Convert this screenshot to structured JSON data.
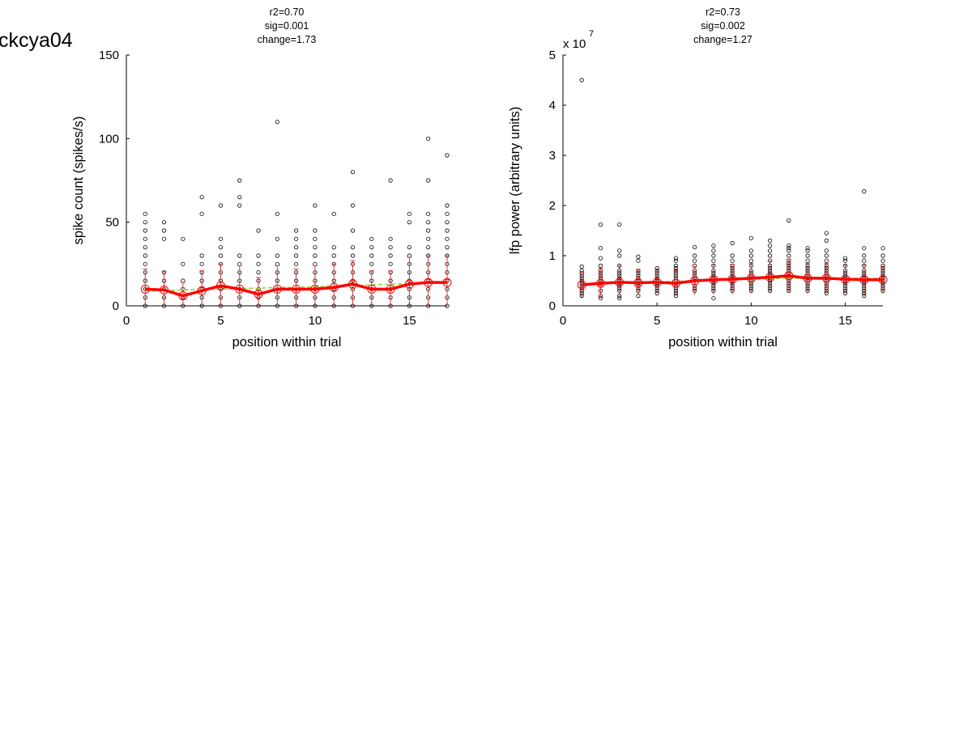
{
  "figure_label": "ckcya04",
  "colors": {
    "scatter": "#000000",
    "mean": "#ff0000",
    "errorbar": "#d04040",
    "fit": "#9acd32"
  },
  "chart_data": [
    {
      "type": "scatter",
      "stats": [
        "r2=0.70",
        "sig=0.001",
        "change=1.73"
      ],
      "xlabel": "position within trial",
      "ylabel": "spike count (spikes/s)",
      "exponent_label": "",
      "xlim": [
        0,
        17
      ],
      "ylim": [
        0,
        150
      ],
      "xticks": [
        0,
        5,
        10,
        15
      ],
      "yticks": [
        0,
        50,
        100,
        150
      ],
      "ytick_labels": [
        "0",
        "50",
        "100",
        "150"
      ],
      "points": [
        [
          1,
          [
            0,
            5,
            10,
            15,
            20,
            25,
            30,
            35,
            40,
            45,
            50,
            55
          ]
        ],
        [
          2,
          [
            0,
            5,
            10,
            15,
            20,
            40,
            45,
            50
          ]
        ],
        [
          3,
          [
            0,
            5,
            10,
            15,
            25,
            40
          ]
        ],
        [
          4,
          [
            0,
            5,
            10,
            15,
            20,
            25,
            30,
            55,
            65
          ]
        ],
        [
          5,
          [
            0,
            5,
            10,
            15,
            20,
            25,
            30,
            35,
            40,
            60
          ]
        ],
        [
          6,
          [
            0,
            5,
            10,
            15,
            20,
            25,
            30,
            60,
            65,
            75
          ]
        ],
        [
          7,
          [
            0,
            5,
            10,
            15,
            20,
            25,
            30,
            45
          ]
        ],
        [
          8,
          [
            0,
            5,
            10,
            15,
            20,
            25,
            30,
            40,
            55,
            110
          ]
        ],
        [
          9,
          [
            0,
            5,
            10,
            15,
            20,
            25,
            30,
            35,
            40,
            45
          ]
        ],
        [
          10,
          [
            0,
            5,
            10,
            15,
            20,
            25,
            30,
            35,
            40,
            45,
            60
          ]
        ],
        [
          11,
          [
            0,
            5,
            10,
            15,
            20,
            25,
            30,
            35,
            55
          ]
        ],
        [
          12,
          [
            0,
            5,
            10,
            15,
            20,
            25,
            30,
            35,
            45,
            60,
            80
          ]
        ],
        [
          13,
          [
            0,
            5,
            10,
            15,
            20,
            25,
            30,
            35,
            40
          ]
        ],
        [
          14,
          [
            0,
            5,
            10,
            15,
            20,
            25,
            30,
            35,
            40,
            75
          ]
        ],
        [
          15,
          [
            0,
            5,
            10,
            15,
            20,
            25,
            30,
            35,
            50,
            55
          ]
        ],
        [
          16,
          [
            0,
            5,
            10,
            15,
            20,
            25,
            30,
            35,
            40,
            45,
            50,
            55,
            75,
            100
          ]
        ],
        [
          17,
          [
            0,
            5,
            10,
            15,
            20,
            25,
            30,
            35,
            40,
            45,
            50,
            55,
            60,
            90
          ]
        ]
      ],
      "mean": [
        10,
        9.5,
        6,
        9,
        12,
        10,
        7,
        10,
        10,
        10,
        11,
        13,
        10,
        10,
        13,
        14,
        14
      ],
      "err": [
        12,
        11,
        8,
        12,
        13,
        14,
        10,
        14,
        12,
        14,
        14,
        14,
        11,
        11,
        16,
        16,
        16
      ],
      "fit": [
        9,
        9,
        9.5,
        10,
        10,
        10.5,
        10.5,
        11,
        11,
        11.5,
        12,
        12,
        12.5,
        13,
        13,
        13.5,
        14
      ]
    },
    {
      "type": "scatter",
      "stats": [
        "r2=0.73",
        "sig=0.002",
        "change=1.27"
      ],
      "xlabel": "position within trial",
      "ylabel": "lfp power (arbitrary units)",
      "exponent_label": "x 10",
      "exponent_sup": "7",
      "xlim": [
        0,
        17
      ],
      "ylim": [
        0,
        5
      ],
      "xticks": [
        0,
        5,
        10,
        15
      ],
      "yticks": [
        0,
        1,
        2,
        3,
        4,
        5
      ],
      "ytick_labels": [
        "0",
        "1",
        "2",
        "3",
        "4",
        "5"
      ],
      "points": [
        [
          1,
          [
            0.2,
            0.25,
            0.3,
            0.35,
            0.4,
            0.45,
            0.5,
            0.55,
            0.6,
            0.65,
            0.7,
            0.78,
            4.5
          ]
        ],
        [
          2,
          [
            0.15,
            0.2,
            0.3,
            0.4,
            0.45,
            0.5,
            0.55,
            0.6,
            0.65,
            0.7,
            0.8,
            0.95,
            1.15,
            1.62
          ]
        ],
        [
          3,
          [
            0.15,
            0.2,
            0.3,
            0.35,
            0.4,
            0.45,
            0.5,
            0.55,
            0.6,
            0.65,
            0.7,
            0.8,
            1.0,
            1.1,
            1.62
          ]
        ],
        [
          4,
          [
            0.2,
            0.3,
            0.35,
            0.4,
            0.45,
            0.5,
            0.55,
            0.6,
            0.65,
            0.7,
            0.9,
            0.98
          ]
        ],
        [
          5,
          [
            0.25,
            0.3,
            0.35,
            0.4,
            0.45,
            0.5,
            0.55,
            0.6,
            0.65,
            0.7,
            0.75
          ]
        ],
        [
          6,
          [
            0.2,
            0.25,
            0.3,
            0.35,
            0.4,
            0.45,
            0.5,
            0.55,
            0.6,
            0.65,
            0.7,
            0.75,
            0.8,
            0.9,
            0.95
          ]
        ],
        [
          7,
          [
            0.3,
            0.35,
            0.4,
            0.5,
            0.55,
            0.6,
            0.65,
            0.7,
            0.8,
            0.9,
            1.0,
            1.17
          ]
        ],
        [
          8,
          [
            0.15,
            0.3,
            0.35,
            0.4,
            0.45,
            0.5,
            0.55,
            0.6,
            0.65,
            0.7,
            0.8,
            0.9,
            1.0,
            1.1,
            1.2
          ]
        ],
        [
          9,
          [
            0.3,
            0.35,
            0.4,
            0.45,
            0.5,
            0.55,
            0.6,
            0.65,
            0.7,
            0.75,
            0.8,
            0.9,
            1.0,
            1.25
          ]
        ],
        [
          10,
          [
            0.3,
            0.35,
            0.4,
            0.45,
            0.5,
            0.55,
            0.6,
            0.65,
            0.7,
            0.8,
            0.9,
            1.0,
            1.1,
            1.35
          ]
        ],
        [
          11,
          [
            0.3,
            0.35,
            0.4,
            0.45,
            0.5,
            0.55,
            0.6,
            0.65,
            0.7,
            0.75,
            0.8,
            0.9,
            1.0,
            1.1,
            1.2,
            1.3
          ]
        ],
        [
          12,
          [
            0.3,
            0.35,
            0.4,
            0.45,
            0.5,
            0.55,
            0.6,
            0.65,
            0.7,
            0.75,
            0.8,
            0.85,
            0.9,
            1.0,
            1.1,
            1.15,
            1.2,
            1.7
          ]
        ],
        [
          13,
          [
            0.3,
            0.35,
            0.4,
            0.45,
            0.5,
            0.55,
            0.6,
            0.65,
            0.7,
            0.75,
            0.8,
            0.9,
            1.0,
            1.1,
            1.15
          ]
        ],
        [
          14,
          [
            0.25,
            0.3,
            0.35,
            0.4,
            0.45,
            0.5,
            0.55,
            0.6,
            0.65,
            0.7,
            0.75,
            0.8,
            0.9,
            1.0,
            1.1,
            1.3,
            1.45
          ]
        ],
        [
          15,
          [
            0.25,
            0.3,
            0.35,
            0.4,
            0.45,
            0.5,
            0.55,
            0.6,
            0.65,
            0.7,
            0.8,
            0.9,
            0.95
          ]
        ],
        [
          16,
          [
            0.2,
            0.25,
            0.3,
            0.35,
            0.4,
            0.45,
            0.5,
            0.55,
            0.6,
            0.65,
            0.7,
            0.8,
            0.9,
            1.0,
            1.15,
            2.28
          ]
        ],
        [
          17,
          [
            0.3,
            0.35,
            0.4,
            0.45,
            0.5,
            0.55,
            0.6,
            0.65,
            0.7,
            0.75,
            0.8,
            0.9,
            1.0,
            1.15
          ]
        ]
      ],
      "mean": [
        0.42,
        0.45,
        0.47,
        0.46,
        0.47,
        0.45,
        0.5,
        0.52,
        0.53,
        0.55,
        0.57,
        0.6,
        0.55,
        0.55,
        0.53,
        0.52,
        0.52
      ],
      "err": [
        0.25,
        0.3,
        0.33,
        0.25,
        0.22,
        0.25,
        0.28,
        0.3,
        0.3,
        0.3,
        0.32,
        0.33,
        0.3,
        0.3,
        0.28,
        0.3,
        0.27
      ],
      "fit": [
        0.44,
        0.45,
        0.46,
        0.47,
        0.48,
        0.49,
        0.5,
        0.51,
        0.52,
        0.53,
        0.54,
        0.55,
        0.55,
        0.55,
        0.55,
        0.55,
        0.55
      ]
    }
  ]
}
